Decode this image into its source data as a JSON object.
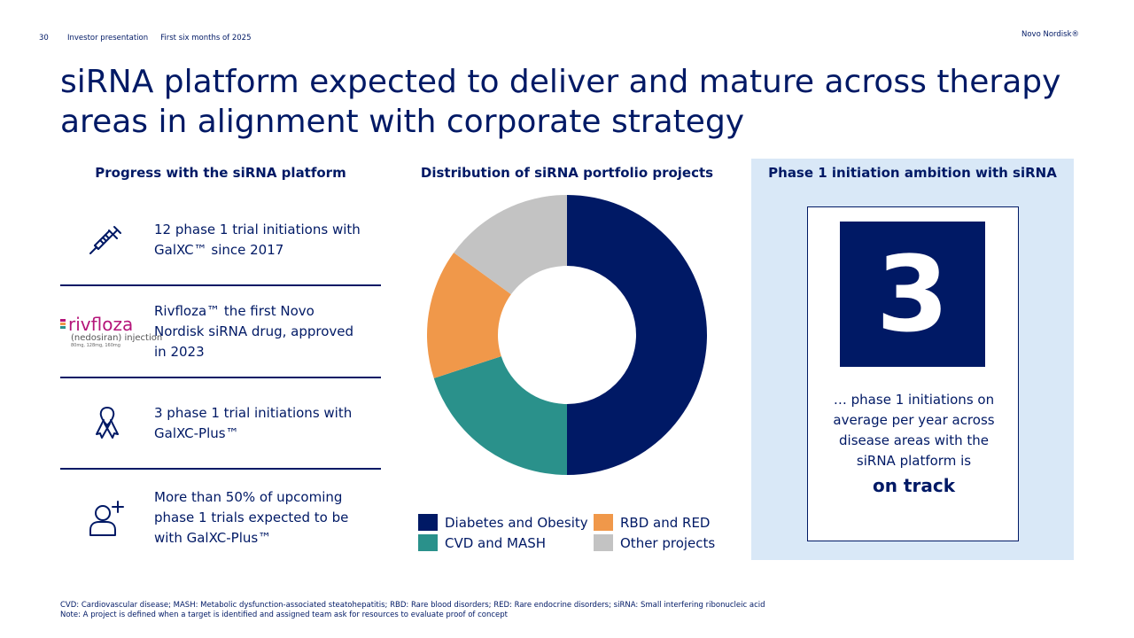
{
  "header": {
    "page_number": "30",
    "section": "Investor presentation",
    "period": "First six months of 2025",
    "brand": "Novo Nordisk®"
  },
  "title": {
    "line1": "siRNA platform expected to deliver and mature across therapy",
    "line2": "areas in alignment with corporate strategy"
  },
  "progress": {
    "heading": "Progress with the siRNA platform",
    "items": [
      {
        "icon": "syringe-icon",
        "line1": "12 phase 1 trial initiations with",
        "line2": "GalXC™ since 2017"
      },
      {
        "icon": "rivfloza-logo",
        "line1": "Rivfloza™ the first Novo",
        "line2": "Nordisk siRNA drug, approved",
        "line3": "in 2023"
      },
      {
        "icon": "ribbon-icon",
        "line1": "3 phase 1 trial initiations with",
        "line2": "GalXC-Plus™"
      },
      {
        "icon": "add-person-icon",
        "line1": "More than 50% of upcoming",
        "line2": "phase 1 trials expected to be",
        "line3": "with GalXC-Plus™"
      }
    ],
    "logo": {
      "brand": "rivfloza",
      "sub": "(nedosiran) injection",
      "doses": "80mg, 128mg, 160mg"
    }
  },
  "distribution": {
    "heading": "Distribution of siRNA portfolio projects"
  },
  "chart_data": {
    "type": "pie",
    "title": "Distribution of siRNA portfolio projects",
    "categories": [
      "Diabetes and Obesity",
      "CVD and MASH",
      "RBD and RED",
      "Other projects"
    ],
    "values": [
      50,
      20,
      15,
      15
    ],
    "colors": [
      "#001965",
      "#2a918b",
      "#f0984a",
      "#c3c3c3"
    ],
    "legend_position": "bottom"
  },
  "ambition": {
    "heading": "Phase 1 initiation ambition with siRNA",
    "number": "3",
    "line1": "… phase 1 initiations on",
    "line2": "average per year across",
    "line3": "disease areas with the",
    "line4": "siRNA platform is",
    "strong": "on track"
  },
  "footnotes": {
    "line1": "CVD: Cardiovascular disease; MASH: Metabolic dysfunction-associated steatohepatitis; RBD: Rare blood disorders; RED: Rare endocrine disorders; siRNA: Small interfering ribonucleic acid",
    "line2": "Note: A project is defined when a target is identified and assigned team ask for resources to evaluate proof of concept"
  },
  "colors": {
    "navy": "#001965",
    "panel_bg": "#d9e8f7",
    "rivfloza_magenta": "#b5157a"
  }
}
